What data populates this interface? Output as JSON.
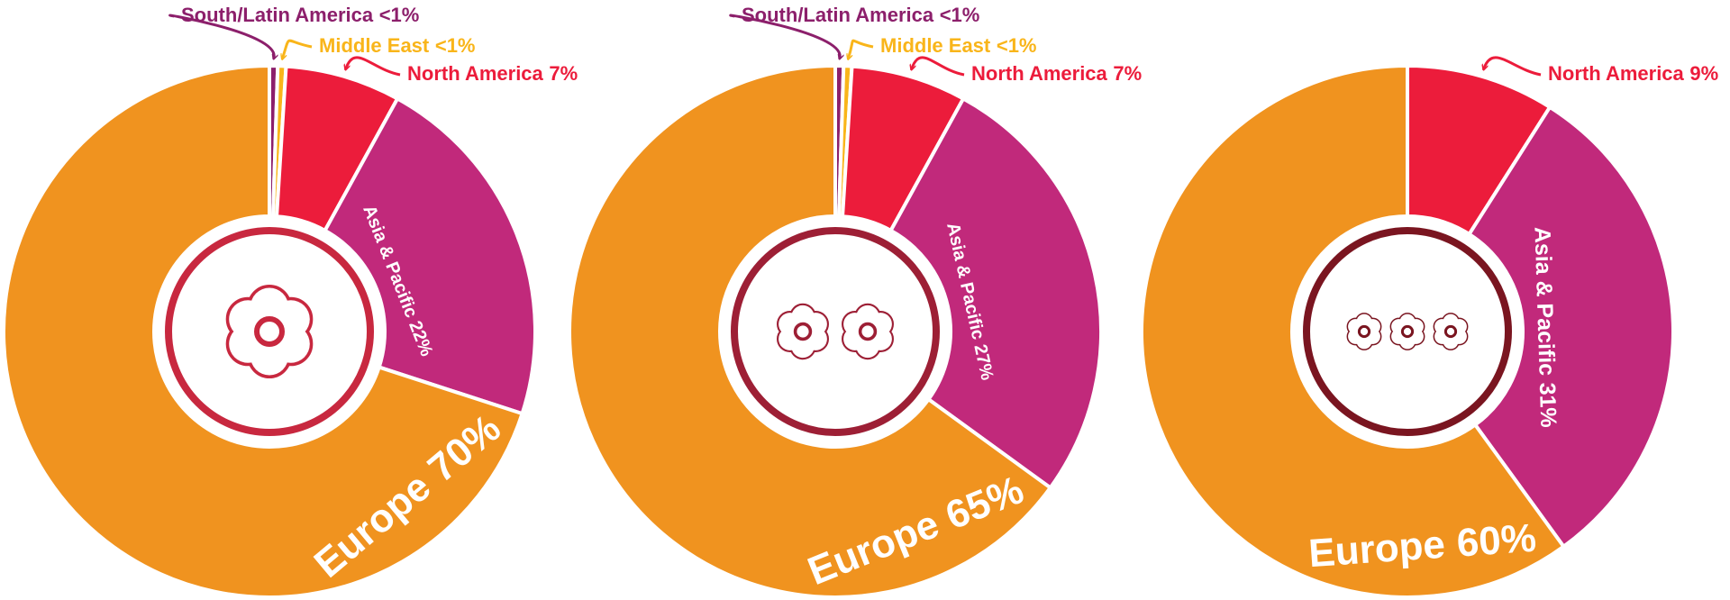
{
  "chart_data": [
    {
      "type": "pie",
      "categories": [
        "South/Latin America",
        "Middle East",
        "North America",
        "Asia & Pacific",
        "Europe"
      ],
      "values": [
        0.5,
        0.5,
        7,
        22,
        70
      ],
      "value_labels": [
        "<1%",
        "<1%",
        "7%",
        "22%",
        "70%"
      ],
      "colors": [
        "#8c1f6b",
        "#f9b51a",
        "#ec1c3b",
        "#c1297b",
        "#f0931f"
      ]
    },
    {
      "type": "pie",
      "categories": [
        "South/Latin America",
        "Middle East",
        "North America",
        "Asia & Pacific",
        "Europe"
      ],
      "values": [
        0.5,
        0.5,
        7,
        27,
        65
      ],
      "value_labels": [
        "<1%",
        "<1%",
        "7%",
        "27%",
        "65%"
      ],
      "colors": [
        "#8c1f6b",
        "#f9b51a",
        "#ec1c3b",
        "#c1297b",
        "#f0931f"
      ]
    },
    {
      "type": "pie",
      "categories": [
        "North America",
        "Asia & Pacific",
        "Europe"
      ],
      "values": [
        9,
        31,
        60
      ],
      "value_labels": [
        "9%",
        "31%",
        "60%"
      ],
      "colors": [
        "#ec1c3b",
        "#c1297b",
        "#f0931f"
      ]
    }
  ]
}
